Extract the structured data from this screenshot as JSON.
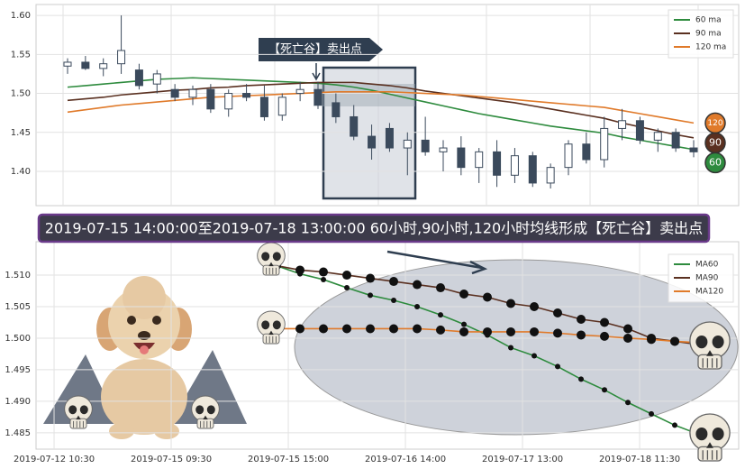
{
  "chart_data": [
    {
      "type": "candlestick",
      "annotation": "【死亡谷】卖出点",
      "ylim": [
        1.356,
        1.614
      ],
      "yticks": [
        {
          "value": 1.4,
          "label": "1.40"
        },
        1.45,
        {
          "value": 1.5,
          "label": "1.50"
        },
        1.55,
        {
          "value": 1.6,
          "label": "1.60"
        }
      ],
      "grid": true,
      "legend": "upper right",
      "up_color": "#ffffff",
      "down_color": "#3b4a5c",
      "open": [
        1.535,
        1.54,
        1.532,
        1.538,
        1.53,
        1.512,
        1.505,
        1.495,
        1.505,
        1.48,
        1.5,
        1.495,
        1.472,
        1.5,
        1.505,
        1.488,
        1.47,
        1.445,
        1.455,
        1.43,
        1.44,
        1.425,
        1.43,
        1.405,
        1.425,
        1.395,
        1.42,
        1.385,
        1.405,
        1.435,
        1.415,
        1.455,
        1.465,
        1.44,
        1.45,
        1.43
      ],
      "high": [
        1.545,
        1.548,
        1.545,
        1.6,
        1.538,
        1.53,
        1.512,
        1.51,
        1.512,
        1.505,
        1.512,
        1.51,
        1.5,
        1.515,
        1.515,
        1.5,
        1.485,
        1.46,
        1.462,
        1.45,
        1.47,
        1.44,
        1.445,
        1.43,
        1.44,
        1.43,
        1.425,
        1.41,
        1.44,
        1.45,
        1.47,
        1.48,
        1.47,
        1.455,
        1.455,
        1.44
      ],
      "low": [
        1.525,
        1.53,
        1.522,
        1.525,
        1.505,
        1.5,
        1.49,
        1.485,
        1.475,
        1.47,
        1.49,
        1.465,
        1.465,
        1.49,
        1.48,
        1.462,
        1.44,
        1.415,
        1.425,
        1.395,
        1.42,
        1.4,
        1.395,
        1.385,
        1.38,
        1.385,
        1.38,
        1.378,
        1.395,
        1.41,
        1.405,
        1.44,
        1.435,
        1.425,
        1.425,
        1.418
      ],
      "close": [
        1.54,
        1.532,
        1.538,
        1.555,
        1.51,
        1.525,
        1.495,
        1.505,
        1.48,
        1.5,
        1.495,
        1.47,
        1.495,
        1.505,
        1.485,
        1.47,
        1.445,
        1.43,
        1.43,
        1.44,
        1.425,
        1.43,
        1.405,
        1.425,
        1.395,
        1.42,
        1.385,
        1.405,
        1.435,
        1.415,
        1.455,
        1.465,
        1.44,
        1.45,
        1.43,
        1.425
      ],
      "series": [
        {
          "name": "60 ma",
          "end_label": "60",
          "color": "#2e8b3e",
          "values": [
            1.508,
            1.51,
            1.512,
            1.514,
            1.516,
            1.518,
            1.519,
            1.52,
            1.519,
            1.518,
            1.517,
            1.516,
            1.515,
            1.514,
            1.513,
            1.511,
            1.508,
            1.504,
            1.499,
            1.494,
            1.489,
            1.484,
            1.479,
            1.474,
            1.47,
            1.466,
            1.462,
            1.458,
            1.455,
            1.452,
            1.449,
            1.444,
            1.44,
            1.436,
            1.432,
            1.428
          ]
        },
        {
          "name": "90 ma",
          "end_label": "90",
          "color": "#5a3020",
          "values": [
            1.491,
            1.493,
            1.495,
            1.498,
            1.5,
            1.502,
            1.504,
            1.505,
            1.507,
            1.508,
            1.51,
            1.511,
            1.512,
            1.513,
            1.514,
            1.514,
            1.514,
            1.512,
            1.51,
            1.507,
            1.503,
            1.5,
            1.497,
            1.494,
            1.491,
            1.488,
            1.484,
            1.48,
            1.476,
            1.472,
            1.468,
            1.462,
            1.457,
            1.452,
            1.447,
            1.443
          ]
        },
        {
          "name": "120 ma",
          "end_label": "120",
          "color": "#e07a2a",
          "values": [
            1.476,
            1.479,
            1.482,
            1.485,
            1.487,
            1.489,
            1.491,
            1.493,
            1.495,
            1.496,
            1.497,
            1.498,
            1.499,
            1.5,
            1.501,
            1.502,
            1.502,
            1.502,
            1.502,
            1.501,
            1.5,
            1.499,
            1.498,
            1.496,
            1.494,
            1.492,
            1.49,
            1.488,
            1.486,
            1.484,
            1.482,
            1.478,
            1.474,
            1.47,
            1.466,
            1.462
          ]
        }
      ]
    },
    {
      "type": "line",
      "title": "2019-07-15 14:00:00至2019-07-18 13:00:00 60小时,90小时,120小时均线形成【死亡谷】卖出点",
      "xlim": [
        -0.77,
        29.23
      ],
      "xticks": [
        {
          "value": 0,
          "label": "2019-07-12 10:30"
        },
        {
          "value": 5,
          "label": "2019-07-15 09:30"
        },
        {
          "value": 10,
          "label": "2019-07-15 15:00"
        },
        {
          "value": 15,
          "label": "2019-07-16 14:00"
        },
        {
          "value": 20,
          "label": "2019-07-17 13:00"
        },
        {
          "value": 25,
          "label": "2019-07-18 11:30"
        }
      ],
      "ylim": [
        1.4824,
        1.5153
      ],
      "yticks": [
        1.485,
        {
          "value": 1.49,
          "label": "1.490"
        },
        1.495,
        {
          "value": 1.5,
          "label": "1.500"
        },
        1.505,
        {
          "value": 1.51,
          "label": "1.510"
        }
      ],
      "grid": true,
      "legend": "upper right",
      "x": [
        9.5,
        10.5,
        11.5,
        12.5,
        13.5,
        14.5,
        15.5,
        16.5,
        17.5,
        18.5,
        19.5,
        20.5,
        21.5,
        22.5,
        23.5,
        24.5,
        25.5,
        26.5,
        27.5
      ],
      "series": [
        {
          "name": "MA60",
          "color": "#2e8b3e",
          "values": [
            1.5115,
            1.5102,
            1.5093,
            1.508,
            1.5068,
            1.506,
            1.505,
            1.5037,
            1.5022,
            1.5005,
            1.4985,
            1.4972,
            1.4955,
            1.4935,
            1.4918,
            1.4898,
            1.488,
            1.4862,
            1.4848
          ]
        },
        {
          "name": "MA90",
          "color": "#5a3020",
          "values": [
            1.5115,
            1.5108,
            1.5105,
            1.51,
            1.5095,
            1.509,
            1.5085,
            1.508,
            1.507,
            1.5065,
            1.5055,
            1.505,
            1.504,
            1.503,
            1.5025,
            1.5015,
            1.5,
            1.4995,
            1.499
          ]
        },
        {
          "name": "MA120",
          "color": "#e07a2a",
          "values": [
            1.5015,
            1.5015,
            1.5015,
            1.5015,
            1.5015,
            1.5015,
            1.5015,
            1.5013,
            1.501,
            1.501,
            1.501,
            1.501,
            1.5008,
            1.5005,
            1.5003,
            1.5,
            1.4998,
            1.4995,
            1.4993
          ]
        }
      ]
    }
  ]
}
